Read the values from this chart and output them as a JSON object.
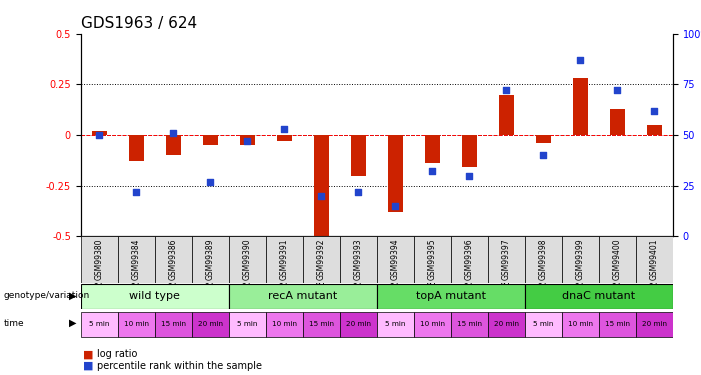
{
  "title": "GDS1963 / 624",
  "samples": [
    "GSM99380",
    "GSM99384",
    "GSM99386",
    "GSM99389",
    "GSM99390",
    "GSM99391",
    "GSM99392",
    "GSM99393",
    "GSM99394",
    "GSM99395",
    "GSM99396",
    "GSM99397",
    "GSM99398",
    "GSM99399",
    "GSM99400",
    "GSM99401"
  ],
  "log_ratio": [
    0.02,
    -0.13,
    -0.1,
    -0.05,
    -0.05,
    -0.03,
    -0.5,
    -0.2,
    -0.38,
    -0.14,
    -0.16,
    0.2,
    -0.04,
    0.28,
    0.13,
    0.05
  ],
  "percentile_rank": [
    50,
    22,
    51,
    27,
    47,
    53,
    20,
    22,
    15,
    32,
    30,
    72,
    40,
    87,
    72,
    62
  ],
  "groups": [
    {
      "label": "wild type",
      "start": 0,
      "end": 4,
      "color": "#ccffcc"
    },
    {
      "label": "recA mutant",
      "start": 4,
      "end": 8,
      "color": "#99ee99"
    },
    {
      "label": "topA mutant",
      "start": 8,
      "end": 12,
      "color": "#66dd66"
    },
    {
      "label": "dnaC mutant",
      "start": 12,
      "end": 16,
      "color": "#44cc44"
    }
  ],
  "time_labels": [
    "5 min",
    "10 min",
    "15 min",
    "20 min",
    "5 min",
    "10 min",
    "15 min",
    "20 min",
    "5 min",
    "10 min",
    "15 min",
    "20 min",
    "5 min",
    "10 min",
    "15 min",
    "20 min"
  ],
  "time_colors": [
    "#ffbbff",
    "#ee77ee",
    "#dd55dd",
    "#cc33cc",
    "#ffbbff",
    "#ee77ee",
    "#dd55dd",
    "#cc33cc",
    "#ffbbff",
    "#ee77ee",
    "#dd55dd",
    "#cc33cc",
    "#ffbbff",
    "#ee77ee",
    "#dd55dd",
    "#cc33cc"
  ],
  "ylim": [
    -0.5,
    0.5
  ],
  "yticks_left": [
    -0.5,
    -0.25,
    0.0,
    0.25,
    0.5
  ],
  "yticks_right": [
    0,
    25,
    50,
    75,
    100
  ],
  "bar_color_red": "#cc2200",
  "bar_color_blue": "#2244cc",
  "title_fontsize": 11,
  "tick_fontsize": 7,
  "label_fontsize": 8,
  "sample_bg": "#dddddd"
}
